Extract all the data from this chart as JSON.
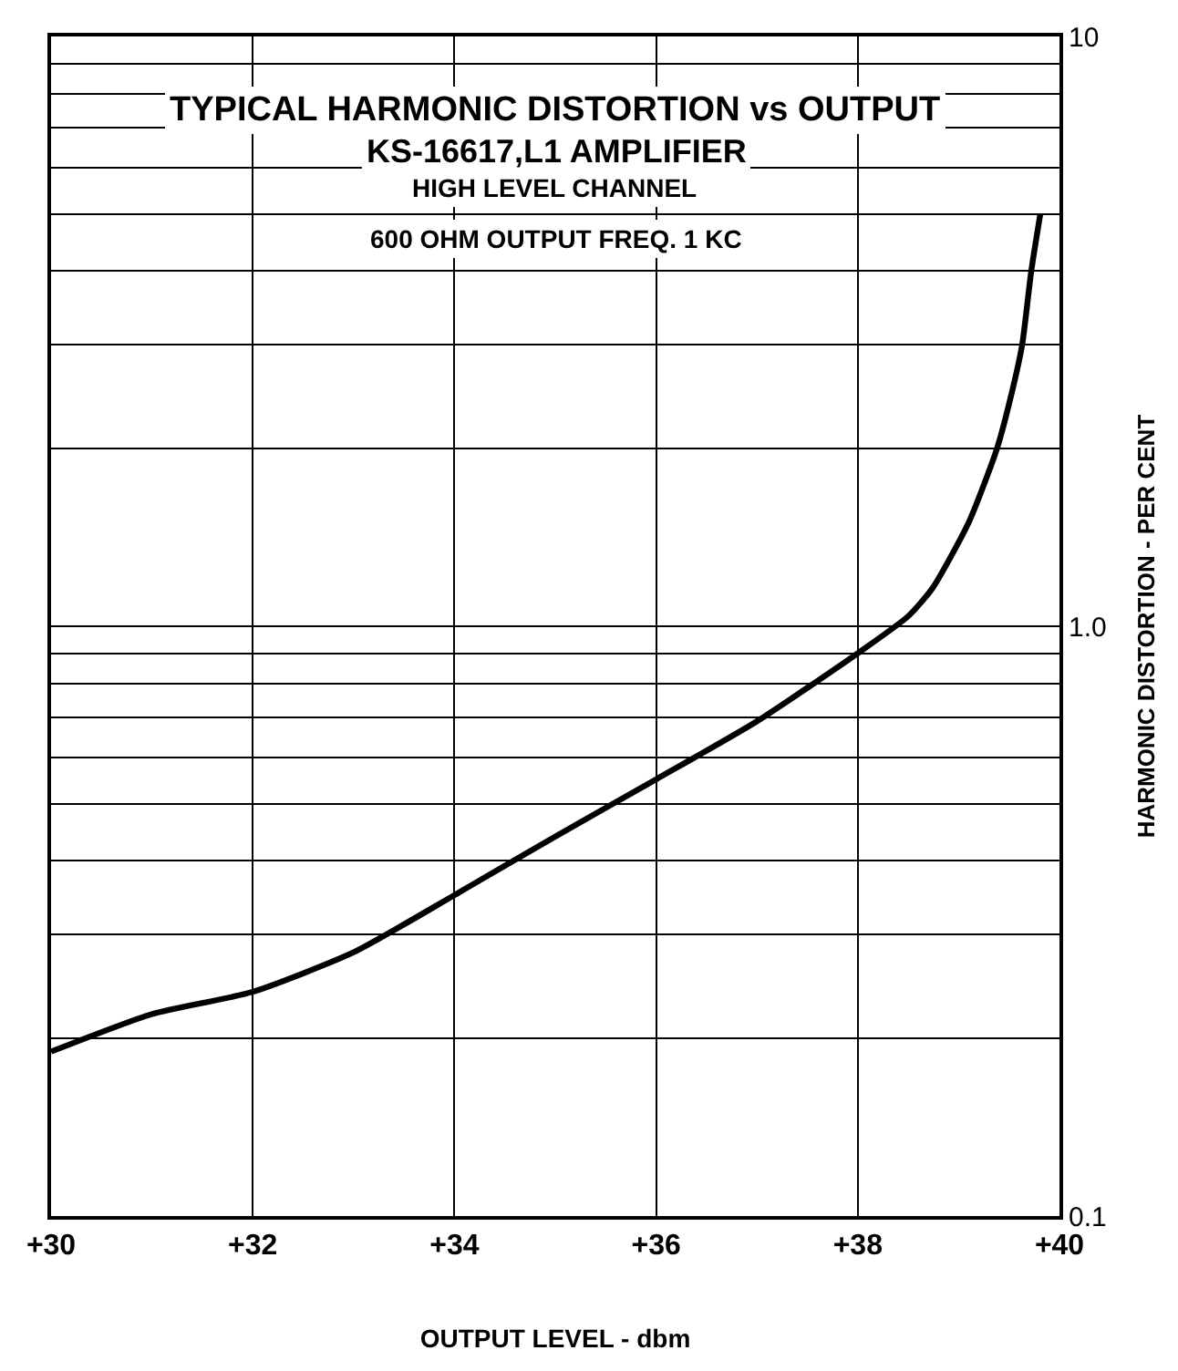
{
  "chart_data": {
    "type": "line",
    "title": "TYPICAL HARMONIC DISTORTION vs OUTPUT",
    "subtitle": "KS-16617,L1 AMPLIFIER",
    "annotations": [
      "HIGH LEVEL CHANNEL",
      "600 OHM OUTPUT FREQ. 1 KC"
    ],
    "xlabel": "OUTPUT LEVEL - dbm",
    "ylabel": "HARMONIC DISTORTION - PER CENT",
    "x": [
      30,
      31,
      32,
      33,
      34,
      35,
      36,
      37,
      38,
      38.5,
      38.74,
      39.1,
      39.38,
      39.53,
      39.63,
      39.72,
      39.81
    ],
    "series": [
      {
        "color": "#000000",
        "values": [
          0.19,
          0.22,
          0.24,
          0.28,
          0.35,
          0.44,
          0.55,
          0.69,
          0.9,
          1.04,
          1.16,
          1.5,
          2.0,
          2.5,
          3.0,
          4.0,
          5.0
        ]
      }
    ],
    "log": "y",
    "grid": true,
    "marker": "none",
    "line_style": "solid",
    "xlim": [
      30,
      40
    ],
    "xticks": [
      {
        "value": 30,
        "label": "+30"
      },
      {
        "value": 32,
        "label": "+32"
      },
      {
        "value": 34,
        "label": "+34"
      },
      {
        "value": 36,
        "label": "+36"
      },
      {
        "value": 38,
        "label": "+38"
      },
      {
        "value": 40,
        "label": "+40"
      }
    ],
    "ylim": [
      0.1,
      10
    ],
    "yticks": [
      {
        "value": 0.1,
        "label": "0.1"
      },
      {
        "value": 0.2,
        "label": null
      },
      {
        "value": 0.3,
        "label": null
      },
      {
        "value": 0.4,
        "label": null
      },
      {
        "value": 0.5,
        "label": null
      },
      {
        "value": 0.6,
        "label": null
      },
      {
        "value": 0.7,
        "label": null
      },
      {
        "value": 0.8,
        "label": null
      },
      {
        "value": 0.9,
        "label": null
      },
      {
        "value": 1,
        "label": "1.0"
      },
      {
        "value": 2,
        "label": null
      },
      {
        "value": 3,
        "label": null
      },
      {
        "value": 4,
        "label": null
      },
      {
        "value": 5,
        "label": null
      },
      {
        "value": 6,
        "label": null
      },
      {
        "value": 7,
        "label": null
      },
      {
        "value": 8,
        "label": null
      },
      {
        "value": 9,
        "label": null
      },
      {
        "value": 10,
        "label": "10"
      }
    ]
  }
}
